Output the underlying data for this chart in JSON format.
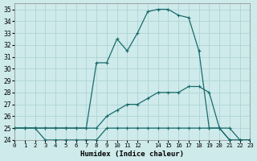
{
  "xlabel": "Humidex (Indice chaleur)",
  "bg_color": "#ceeaeb",
  "grid_color": "#aed4d5",
  "line_color": "#1a6b6b",
  "xlim": [
    0,
    23
  ],
  "ylim": [
    24,
    35.5
  ],
  "yticks": [
    24,
    25,
    26,
    27,
    28,
    29,
    30,
    31,
    32,
    33,
    34,
    35
  ],
  "xticks": [
    0,
    1,
    2,
    3,
    4,
    5,
    6,
    7,
    8,
    9,
    10,
    11,
    12,
    13,
    14,
    15,
    16,
    17,
    18,
    19,
    20,
    21,
    22,
    23
  ],
  "xtick_labels": [
    "0",
    "1",
    "2",
    "3",
    "4",
    "5",
    "6",
    "7",
    "8",
    "9",
    "10",
    "11",
    "12",
    "",
    "14",
    "15",
    "16",
    "17",
    "18",
    "19",
    "20",
    "21",
    "22",
    "23"
  ],
  "line1_x": [
    0,
    1,
    2,
    3,
    4,
    5,
    6,
    7,
    8,
    9,
    10,
    11,
    12,
    13,
    14,
    15,
    16,
    17,
    18,
    19,
    20,
    21,
    22,
    23
  ],
  "line1_y": [
    25,
    25,
    25,
    24,
    24,
    24,
    24,
    24,
    24,
    25,
    25,
    25,
    25,
    25,
    25,
    25,
    25,
    25,
    25,
    25,
    25,
    24,
    24,
    24
  ],
  "line2_x": [
    0,
    1,
    2,
    3,
    4,
    5,
    6,
    7,
    8,
    9,
    10,
    11,
    12,
    13,
    14,
    15,
    16,
    17,
    18,
    19,
    20,
    21,
    22,
    23
  ],
  "line2_y": [
    25,
    25,
    25,
    25,
    25,
    25,
    25,
    25,
    25,
    26,
    26.5,
    27,
    27,
    27.5,
    28,
    28,
    28,
    28.5,
    28.5,
    28,
    25,
    25,
    24,
    24
  ],
  "line3_x": [
    0,
    1,
    2,
    3,
    4,
    5,
    6,
    7,
    8,
    9,
    10,
    11,
    12,
    13,
    14,
    15,
    16,
    17,
    18,
    19,
    20,
    21,
    22,
    23
  ],
  "line3_y": [
    25,
    25,
    25,
    25,
    25,
    25,
    25,
    25,
    30.5,
    30.5,
    32.5,
    31.5,
    33,
    34.8,
    35,
    35,
    34.5,
    34.3,
    31.5,
    25,
    25,
    24,
    24,
    24
  ]
}
